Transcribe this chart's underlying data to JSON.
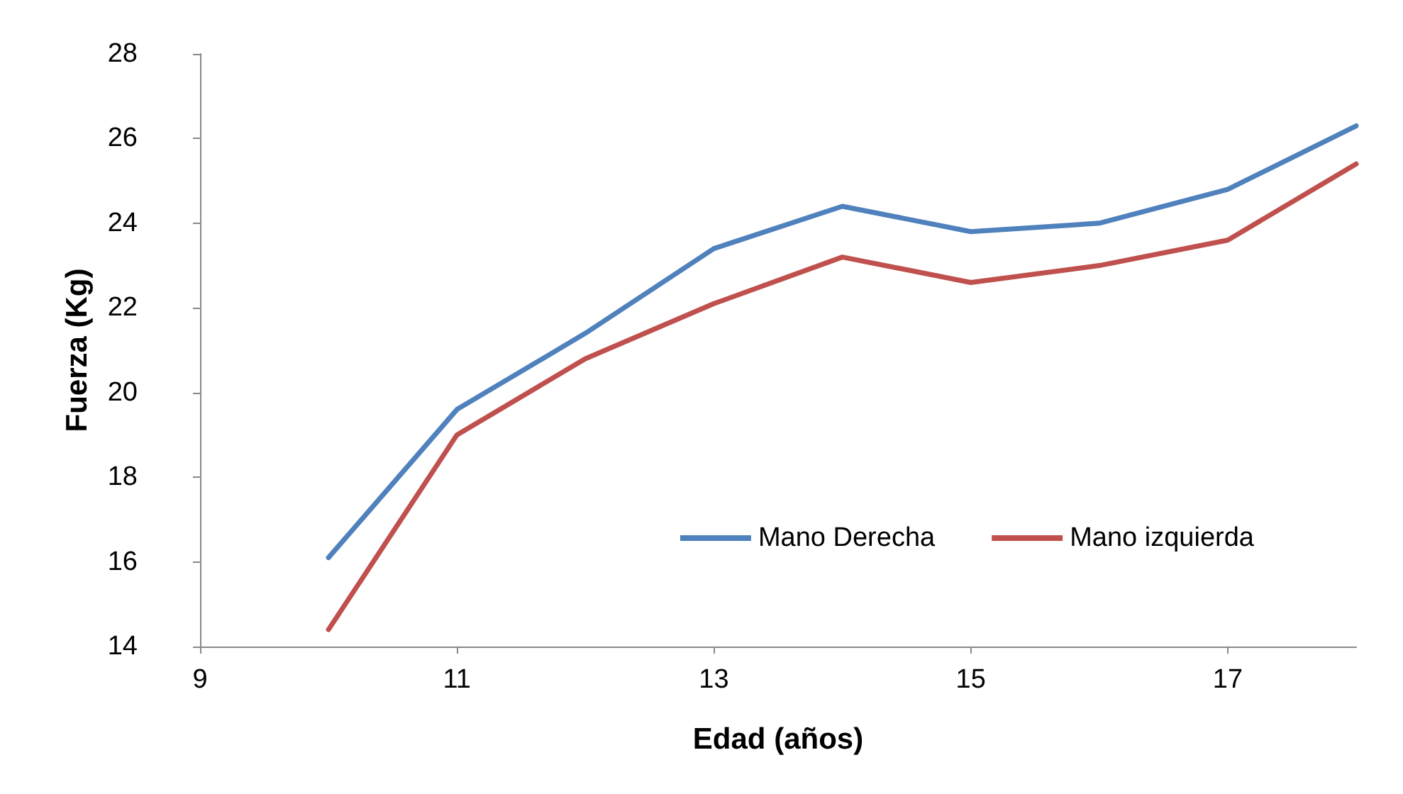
{
  "chart_data": {
    "type": "line",
    "xlabel": "Edad (años)",
    "ylabel": "Fuerza (Kg)",
    "x": [
      10,
      11,
      12,
      13,
      14,
      15,
      16,
      17,
      18
    ],
    "series": [
      {
        "name": "Mano Derecha",
        "color": "#4f81bd",
        "values": [
          16.1,
          19.6,
          21.4,
          23.4,
          24.4,
          23.8,
          24.0,
          24.8,
          26.3
        ]
      },
      {
        "name": "Mano izquierda",
        "color": "#c0504d",
        "values": [
          14.4,
          19.0,
          20.8,
          22.1,
          23.2,
          22.6,
          23.0,
          23.6,
          25.4
        ]
      }
    ],
    "xlim": [
      9,
      18
    ],
    "xticks": [
      9,
      11,
      13,
      15,
      17
    ],
    "ylim": [
      14,
      28
    ],
    "yticks": [
      14,
      16,
      18,
      20,
      22,
      24,
      26,
      28
    ],
    "grid": false,
    "legend": "right",
    "marker": "none",
    "line_style": "solid"
  }
}
